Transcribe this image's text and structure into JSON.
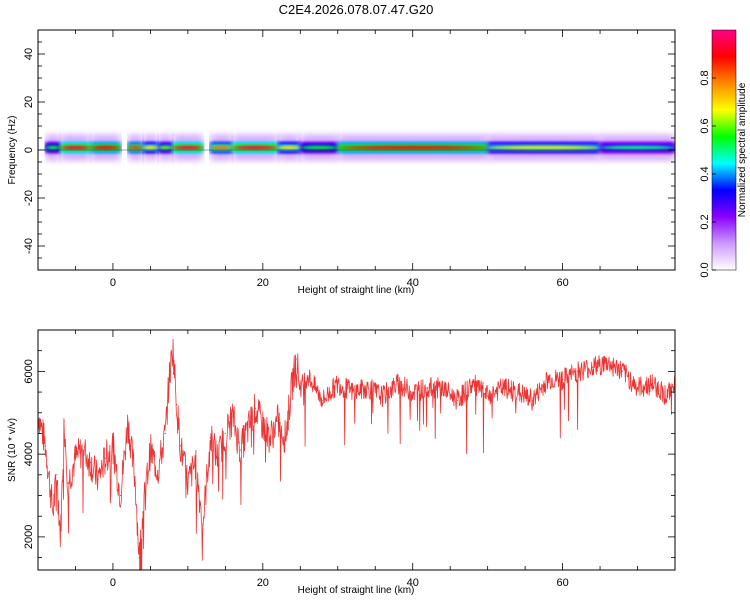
{
  "title": "C2E4.2026.078.07.47.G20",
  "chart_data": [
    {
      "type": "heatmap",
      "xlabel": "Height of straight line (km)",
      "ylabel": "Frequency (Hz)",
      "xlim": [
        -10,
        75
      ],
      "ylim": [
        -50,
        50
      ],
      "xticks": [
        "0",
        "20",
        "40",
        "60"
      ],
      "yticks": [
        "40",
        "20",
        "0",
        "-20",
        "-40"
      ],
      "colorbar": {
        "label": "Normalized spectral amplitude",
        "range": [
          0,
          1
        ],
        "ticks": [
          "0.0",
          "0.2",
          "0.4",
          "0.6",
          "0.8"
        ],
        "colors": [
          "#ffffff",
          "#cc99ff",
          "#8800ff",
          "#0000ff",
          "#00ffff",
          "#00ff00",
          "#ffff00",
          "#ff8800",
          "#ff0000",
          "#ff0088"
        ]
      },
      "band": {
        "center_hz": 1,
        "half_width_hz": 2.5,
        "segments": [
          {
            "x": [
              -9,
              -7
            ],
            "amp": 0.55
          },
          {
            "x": [
              -7,
              -3
            ],
            "amp": 0.95
          },
          {
            "x": [
              -3,
              1
            ],
            "amp": 0.9
          },
          {
            "x": [
              2,
              4
            ],
            "amp": 0.85
          },
          {
            "x": [
              4,
              6
            ],
            "amp": 0.7
          },
          {
            "x": [
              6,
              8
            ],
            "amp": 0.6
          },
          {
            "x": [
              8,
              12
            ],
            "amp": 0.95
          },
          {
            "x": [
              13,
              16
            ],
            "amp": 0.8
          },
          {
            "x": [
              16,
              22
            ],
            "amp": 0.95
          },
          {
            "x": [
              22,
              25
            ],
            "amp": 0.7
          },
          {
            "x": [
              25,
              30
            ],
            "amp": 0.55
          },
          {
            "x": [
              30,
              50
            ],
            "amp": 0.9
          },
          {
            "x": [
              50,
              65
            ],
            "amp": 0.65
          },
          {
            "x": [
              65,
              75
            ],
            "amp": 0.5
          }
        ]
      }
    },
    {
      "type": "line",
      "xlabel": "Height of straight line (km)",
      "ylabel": "SNR (10 * v/v)",
      "xlim": [
        -10,
        75
      ],
      "ylim": [
        1200,
        7000
      ],
      "xticks": [
        "0",
        "20",
        "40",
        "60"
      ],
      "yticks": [
        "6000",
        "4000",
        "2000"
      ],
      "series": [
        {
          "color": "#ee3333",
          "x": [
            -10,
            -9,
            -8,
            -7.5,
            -7,
            -6.5,
            -6,
            -5,
            -4,
            -3,
            -2,
            -1,
            0,
            1,
            2,
            3,
            3.5,
            4,
            5,
            6,
            7,
            7.5,
            8,
            8.5,
            9,
            10,
            11,
            12,
            13,
            14,
            15,
            16,
            17,
            18,
            19,
            20,
            21,
            22,
            23,
            24,
            24.5,
            25,
            26,
            28,
            30,
            32,
            34,
            36,
            38,
            40,
            42,
            44,
            46,
            48,
            50,
            52,
            54,
            56,
            58,
            60,
            62,
            64,
            66,
            68,
            70,
            72,
            74,
            75
          ],
          "y": [
            5000,
            4200,
            2600,
            3500,
            2000,
            4800,
            3300,
            3900,
            4100,
            3800,
            3400,
            3900,
            4200,
            3000,
            4800,
            3300,
            1500,
            2600,
            4100,
            3600,
            4500,
            5800,
            6600,
            5200,
            4200,
            3300,
            3800,
            2300,
            4400,
            3900,
            4500,
            4900,
            4100,
            4600,
            5100,
            4700,
            4400,
            4800,
            4400,
            5800,
            6300,
            5600,
            5900,
            5300,
            5700,
            5500,
            5600,
            5400,
            5700,
            5500,
            5600,
            5600,
            5300,
            5700,
            5400,
            5600,
            5500,
            5300,
            5800,
            5800,
            6000,
            6100,
            6200,
            6000,
            5600,
            5700,
            5400,
            5800
          ]
        }
      ]
    }
  ]
}
